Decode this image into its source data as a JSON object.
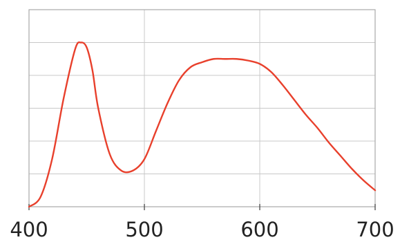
{
  "chart_data": {
    "type": "line",
    "title": "",
    "xlabel": "",
    "ylabel": "",
    "xlim": [
      400,
      700
    ],
    "ylim": [
      0,
      1.2
    ],
    "x_ticks": [
      400,
      500,
      600,
      700
    ],
    "x_tick_labels": [
      "400",
      "500",
      "600",
      "700"
    ],
    "y_gridlines": [
      0.2,
      0.4,
      0.6,
      0.8,
      1.0
    ],
    "grid": true,
    "legend": "none",
    "colors": {
      "line": "#e8402c",
      "grid": "#c8c8c8",
      "frame": "#a8a8a8"
    },
    "series": [
      {
        "x": [
          400,
          410,
          420,
          430,
          440,
          445,
          450,
          455,
          460,
          470,
          480,
          490,
          500,
          510,
          520,
          530,
          540,
          550,
          560,
          570,
          580,
          590,
          600,
          610,
          620,
          630,
          640,
          650,
          660,
          670,
          680,
          690,
          700
        ],
        "y": [
          0.0,
          0.06,
          0.29,
          0.66,
          0.96,
          1.0,
          0.97,
          0.83,
          0.6,
          0.32,
          0.22,
          0.22,
          0.29,
          0.46,
          0.63,
          0.77,
          0.85,
          0.88,
          0.9,
          0.9,
          0.9,
          0.89,
          0.87,
          0.82,
          0.74,
          0.65,
          0.56,
          0.48,
          0.39,
          0.31,
          0.23,
          0.16,
          0.1
        ]
      }
    ]
  }
}
